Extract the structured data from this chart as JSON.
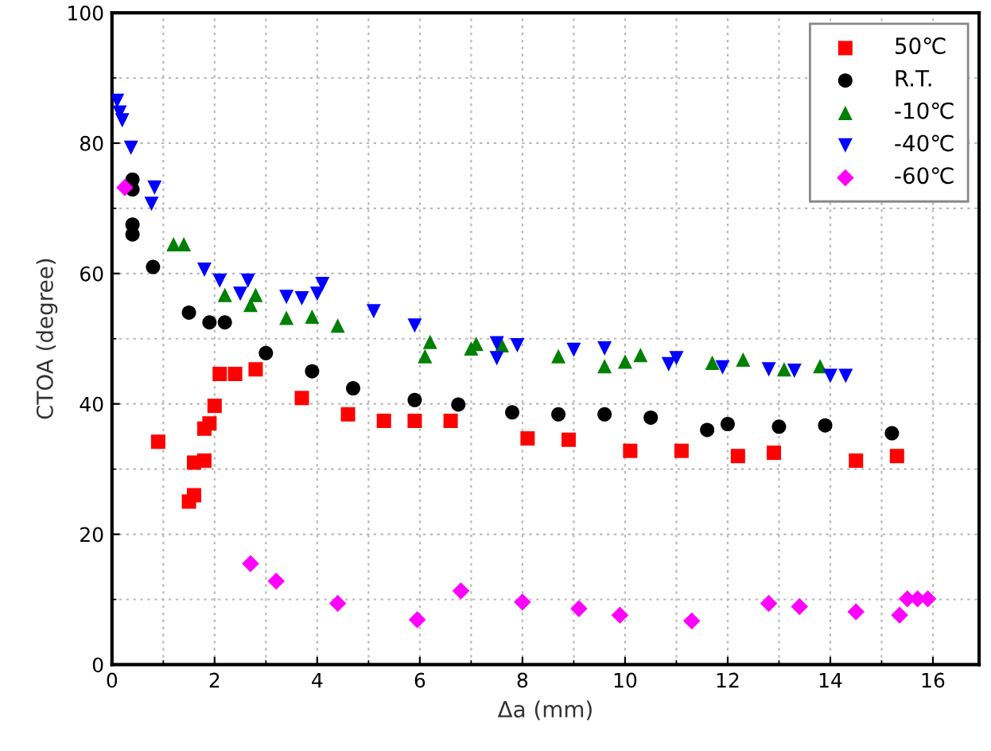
{
  "chart_data": {
    "type": "scatter",
    "xlabel": "Δa (mm)",
    "ylabel": "CTOA (degree)",
    "xlim": [
      0,
      16.9
    ],
    "ylim": [
      0,
      100
    ],
    "xticks": [
      0,
      2,
      4,
      6,
      8,
      10,
      12,
      14,
      16
    ],
    "yticks": [
      0,
      20,
      40,
      60,
      80,
      100
    ],
    "grid": true,
    "legend": "top right",
    "series": [
      {
        "name": "50℃",
        "color": "#ff0000",
        "marker": "square",
        "x": [
          0.9,
          1.5,
          1.6,
          1.6,
          1.8,
          1.8,
          1.9,
          2.0,
          2.1,
          2.4,
          2.8,
          3.7,
          4.6,
          5.3,
          5.9,
          6.6,
          8.1,
          8.9,
          10.1,
          11.1,
          12.2,
          12.9,
          14.5,
          15.3
        ],
        "values": [
          34.2,
          25,
          26,
          31,
          31.3,
          36.2,
          37,
          39.7,
          44.6,
          44.6,
          45.3,
          40.9,
          38.4,
          37.4,
          37.4,
          37.4,
          34.7,
          34.5,
          32.8,
          32.8,
          32.0,
          32.5,
          31.3,
          32.0
        ]
      },
      {
        "name": "R.T.",
        "color": "#000000",
        "marker": "circle",
        "x": [
          0.4,
          0.4,
          0.4,
          0.4,
          0.8,
          1.5,
          1.9,
          2.2,
          3.0,
          3.9,
          4.7,
          5.9,
          6.75,
          7.8,
          8.7,
          9.6,
          10.5,
          11.6,
          12.0,
          13.0,
          13.9,
          15.2
        ],
        "values": [
          74.4,
          72.9,
          67.5,
          66,
          61,
          54,
          52.5,
          52.5,
          47.8,
          45,
          42.4,
          40.6,
          39.9,
          38.7,
          38.4,
          38.4,
          37.9,
          36.0,
          36.9,
          36.5,
          36.7,
          35.5
        ]
      },
      {
        "name": "-10℃",
        "color": "#008000",
        "marker": "triangle",
        "x": [
          1.2,
          1.4,
          2.2,
          2.7,
          2.8,
          3.4,
          3.9,
          4.4,
          6.1,
          6.2,
          7.0,
          7.1,
          7.6,
          8.7,
          9.6,
          10.0,
          10.3,
          10.9,
          11.7,
          12.3,
          13.1,
          13.8
        ],
        "values": [
          64.5,
          64.5,
          56.7,
          55.2,
          56.7,
          53.2,
          53.4,
          52.0,
          47.3,
          49.5,
          48.5,
          49.2,
          49,
          47.3,
          45.8,
          46.5,
          47.5,
          null,
          46.3,
          46.8,
          45.3,
          45.8
        ]
      },
      {
        "name": "-40℃",
        "color": "#0000ff",
        "marker": "triangle_down",
        "x": [
          0.1,
          0.15,
          0.2,
          0.37,
          0.83,
          0.77,
          1.8,
          2.1,
          2.5,
          2.65,
          3.4,
          3.7,
          4.0,
          4.1,
          5.1,
          5.9,
          7.5,
          7.5,
          7.9,
          9.0,
          9.6,
          10.85,
          11.0,
          11.9,
          12.8,
          13.3,
          14.0,
          14.3
        ],
        "values": [
          86.5,
          84.7,
          83.5,
          79.3,
          73.2,
          70.7,
          60.6,
          58.9,
          56.9,
          58.9,
          56.4,
          56.2,
          56.9,
          58.4,
          54.2,
          52.0,
          47.0,
          49.3,
          49,
          48.3,
          48.5,
          46.1,
          47.0,
          45.6,
          45.3,
          45.1,
          44.3,
          44.3
        ]
      },
      {
        "name": "-60℃",
        "color": "#ff00ff",
        "marker": "diamond",
        "x": [
          0.25,
          2.7,
          3.2,
          4.4,
          5.95,
          6.8,
          8.0,
          9.1,
          9.9,
          11.3,
          12.8,
          13.4,
          14.5,
          15.35,
          15.5,
          15.7,
          15.9
        ],
        "values": [
          73.2,
          15.5,
          12.8,
          9.4,
          6.9,
          11.3,
          9.6,
          8.6,
          7.6,
          6.7,
          9.4,
          8.9,
          8.1,
          7.6,
          10.1,
          10.1,
          10.1
        ]
      }
    ]
  }
}
